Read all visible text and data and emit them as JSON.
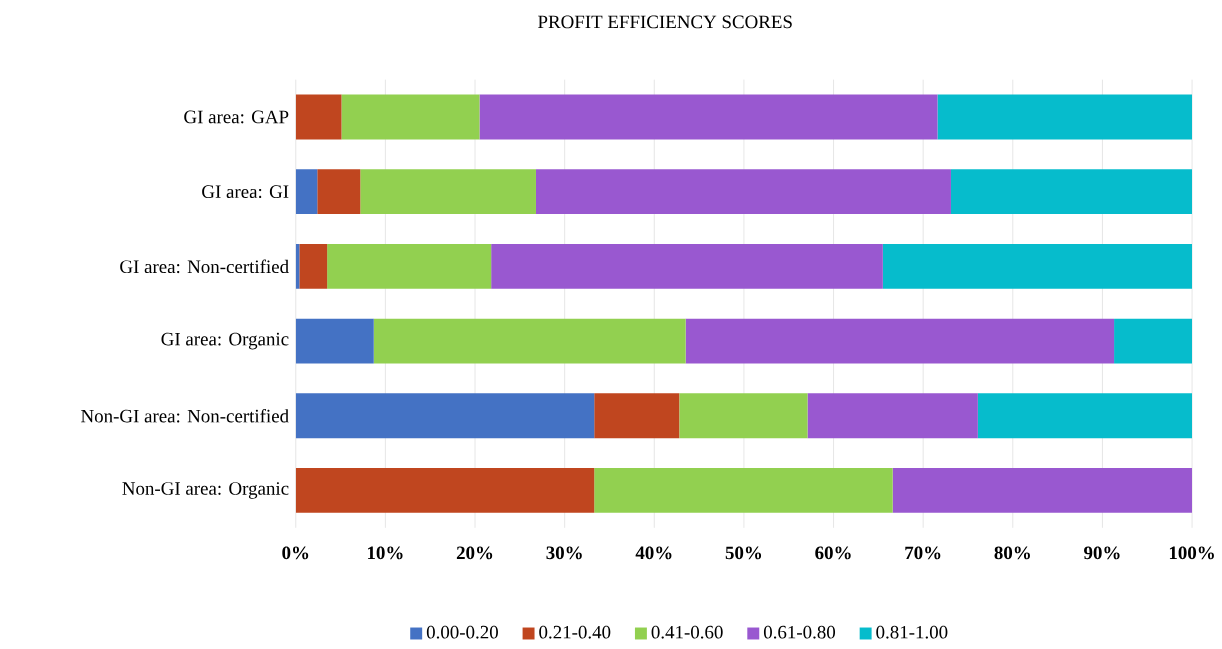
{
  "chart_data": {
    "type": "bar",
    "orientation": "horizontal",
    "stacked": true,
    "title": "PROFIT EFFICIENCY SCORES",
    "categories": [
      "GI area: GAP",
      "GI area: GI",
      "GI area: Non-certified",
      "GI area: Organic",
      "Non-GI area: Non-certified",
      "Non-GI area: Organic"
    ],
    "series": [
      {
        "name": "0.00-0.20",
        "color": "#4472c4",
        "values": [
          0,
          2.4,
          0.4,
          8.7,
          33.3,
          0
        ]
      },
      {
        "name": "0.21-0.40",
        "color": "#c0461f",
        "values": [
          5.1,
          4.8,
          3.1,
          0,
          9.5,
          33.3
        ]
      },
      {
        "name": "0.41-0.60",
        "color": "#92d050",
        "values": [
          15.4,
          19.6,
          18.3,
          34.8,
          14.3,
          33.3
        ]
      },
      {
        "name": "0.61-0.80",
        "color": "#9958d0",
        "values": [
          51.1,
          46.3,
          43.7,
          47.8,
          19.0,
          33.4
        ]
      },
      {
        "name": "0.81-1.00",
        "color": "#06bccc",
        "values": [
          28.4,
          26.9,
          34.5,
          8.7,
          23.9,
          0
        ]
      }
    ],
    "xlim": [
      0,
      100
    ],
    "xticks": [
      {
        "value": 0,
        "label": "0%"
      },
      {
        "value": 10,
        "label": "10%"
      },
      {
        "value": 20,
        "label": "20%"
      },
      {
        "value": 30,
        "label": "30%"
      },
      {
        "value": 40,
        "label": "40%"
      },
      {
        "value": 50,
        "label": "50%"
      },
      {
        "value": 60,
        "label": "60%"
      },
      {
        "value": 70,
        "label": "70%"
      },
      {
        "value": 80,
        "label": "80%"
      },
      {
        "value": 90,
        "label": "90%"
      },
      {
        "value": 100,
        "label": "100%"
      }
    ],
    "grid": "x",
    "legend": "bottom"
  }
}
